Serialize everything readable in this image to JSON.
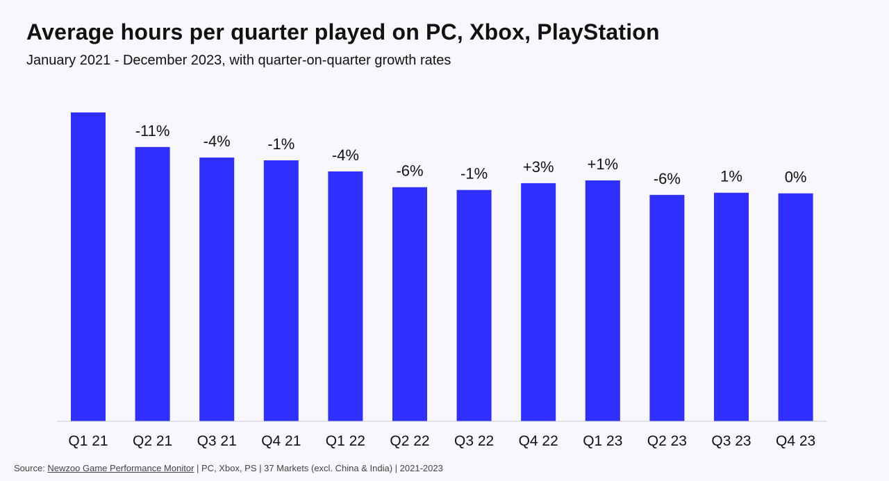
{
  "title": "Average hours per quarter played on PC, Xbox, PlayStation",
  "subtitle": "January 2021 - December 2023, with quarter-on-quarter growth rates",
  "colors": {
    "bar": "#2f2fff",
    "axis": "#cccccc",
    "text": "#111111",
    "background": "#f7f7fc"
  },
  "chart_data": {
    "type": "bar",
    "categories": [
      "Q1 21",
      "Q2 21",
      "Q3 21",
      "Q4 21",
      "Q1 22",
      "Q2 22",
      "Q3 22",
      "Q4 22",
      "Q1 23",
      "Q2 23",
      "Q3 23",
      "Q4 23"
    ],
    "values": [
      100,
      88.8,
      85.4,
      84.5,
      80.9,
      75.8,
      74.9,
      77.1,
      78.0,
      73.3,
      74.0,
      73.8
    ],
    "labels": [
      "",
      "-11%",
      "-4%",
      "-1%",
      "-4%",
      "-6%",
      "-1%",
      "+3%",
      "+1%",
      "-6%",
      "1%",
      "0%"
    ],
    "ylim": [
      0,
      100
    ],
    "grid": false,
    "legend": "none",
    "xlabel": "",
    "ylabel": ""
  },
  "footer": {
    "prefix": "Source: ",
    "link": "Newzoo Game Performance Monitor",
    "suffix": " | PC, Xbox, PS  | 37 Markets (excl. China & India) | 2021-2023"
  }
}
